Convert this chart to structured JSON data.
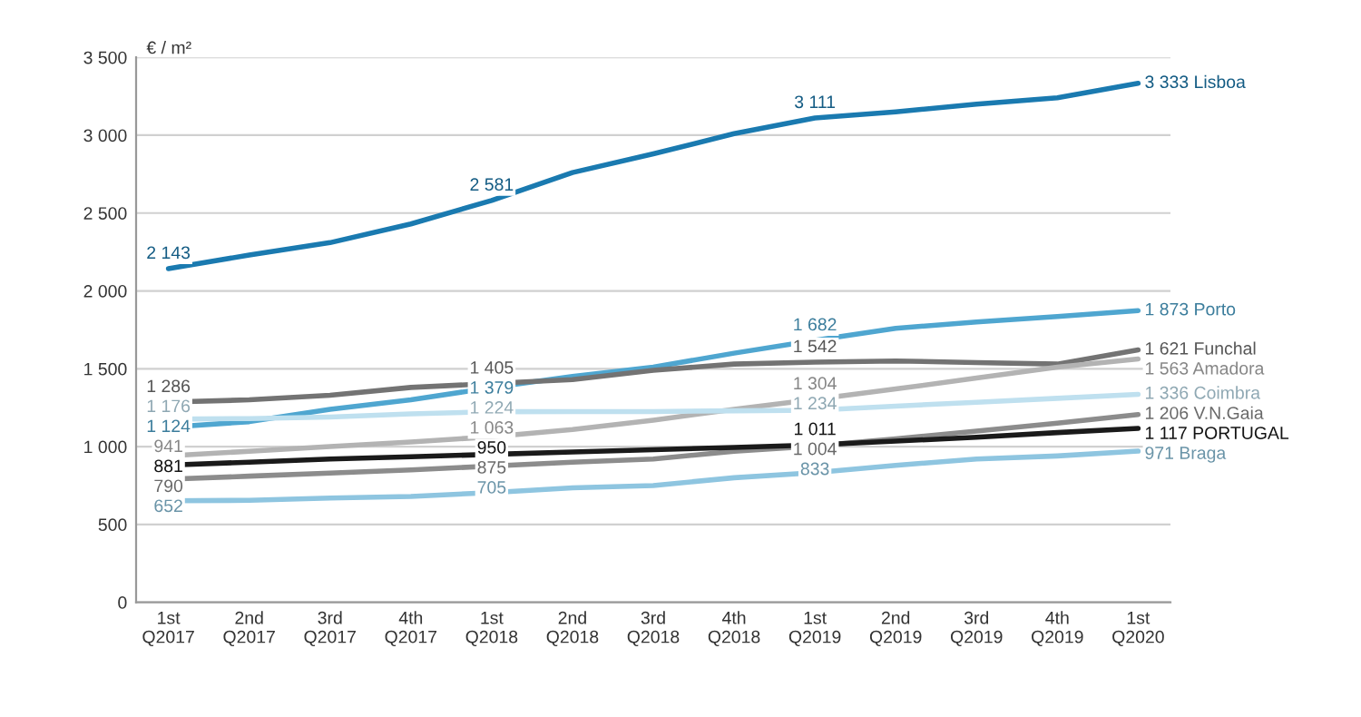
{
  "chart_data": {
    "type": "line",
    "ylabel": "€ / m²",
    "categories": [
      "1st\nQ2017",
      "2nd\nQ2017",
      "3rd\nQ2017",
      "4th\nQ2017",
      "1st\nQ2018",
      "2nd\nQ2018",
      "3rd\nQ2018",
      "4th\nQ2018",
      "1st\nQ2019",
      "2nd\nQ2019",
      "3rd\nQ2019",
      "4th\nQ2019",
      "1st\nQ2020"
    ],
    "ylim": [
      0,
      3500
    ],
    "yticks": [
      0,
      500,
      {
        "value": 1000,
        "label": "1 000"
      },
      {
        "value": 1500,
        "label": "1 500"
      },
      {
        "value": 2000,
        "label": "2 000"
      },
      {
        "value": 2500,
        "label": "2 500"
      },
      {
        "value": 3000,
        "label": "3 000"
      },
      {
        "value": 3500,
        "label": "3 500"
      }
    ],
    "grid": "y",
    "legend": false,
    "marker": "none",
    "line_style": "solid",
    "series": [
      {
        "name": "Lisboa",
        "color": "#1a7ab0",
        "values": [
          2143,
          2230,
          2310,
          2430,
          2581,
          2760,
          2880,
          3010,
          3111,
          3150,
          3200,
          3240,
          3333
        ],
        "value_labels": [
          "2 143",
          null,
          null,
          null,
          "2 581",
          null,
          null,
          null,
          "3 111",
          null,
          null,
          null,
          "3 333"
        ]
      },
      {
        "name": "Porto",
        "color": "#4fa6d0",
        "values": [
          1124,
          1160,
          1240,
          1300,
          1379,
          1450,
          1510,
          1600,
          1682,
          1760,
          1800,
          1835,
          1873
        ],
        "value_labels": [
          "1 124",
          null,
          null,
          null,
          "1 379",
          null,
          null,
          null,
          "1 682",
          null,
          null,
          null,
          "1 873"
        ]
      },
      {
        "name": "Funchal",
        "color": "#737373",
        "values": [
          1286,
          1300,
          1330,
          1380,
          1405,
          1430,
          1490,
          1530,
          1542,
          1550,
          1540,
          1530,
          1621
        ],
        "value_labels": [
          "1 286",
          null,
          null,
          null,
          "1 405",
          null,
          null,
          null,
          "1 542",
          null,
          null,
          null,
          "1 621"
        ]
      },
      {
        "name": "Amadora",
        "color": "#b3b3b3",
        "values": [
          941,
          970,
          1000,
          1030,
          1063,
          1110,
          1170,
          1240,
          1304,
          1370,
          1440,
          1510,
          1563
        ],
        "value_labels": [
          "941",
          null,
          null,
          null,
          "1 063",
          null,
          null,
          null,
          "1 304",
          null,
          null,
          null,
          "1 563"
        ]
      },
      {
        "name": "Coimbra",
        "color": "#bfe0ef",
        "values": [
          1176,
          1180,
          1190,
          1210,
          1224,
          1225,
          1225,
          1230,
          1234,
          1260,
          1285,
          1310,
          1336
        ],
        "value_labels": [
          "1 176",
          null,
          null,
          null,
          "1 224",
          null,
          null,
          null,
          "1 234",
          null,
          null,
          null,
          "1 336"
        ]
      },
      {
        "name": "V.N.Gaia",
        "color": "#8c8c8c",
        "values": [
          790,
          810,
          830,
          850,
          875,
          900,
          920,
          970,
          1004,
          1050,
          1100,
          1150,
          1206
        ],
        "value_labels": [
          "790",
          null,
          null,
          null,
          "875",
          null,
          null,
          null,
          "1 004",
          null,
          null,
          null,
          "1 206"
        ]
      },
      {
        "name": "PORTUGAL",
        "color": "#1a1a1a",
        "values": [
          881,
          900,
          920,
          935,
          950,
          965,
          980,
          995,
          1011,
          1035,
          1060,
          1090,
          1117
        ],
        "value_labels": [
          "881",
          null,
          null,
          null,
          "950",
          null,
          null,
          null,
          "1 011",
          null,
          null,
          null,
          "1 117"
        ]
      },
      {
        "name": "Braga",
        "color": "#8ec5e0",
        "values": [
          652,
          655,
          670,
          680,
          705,
          735,
          750,
          800,
          833,
          880,
          920,
          940,
          971
        ],
        "value_labels": [
          "652",
          null,
          null,
          null,
          "705",
          null,
          null,
          null,
          "833",
          null,
          null,
          null,
          "971"
        ]
      }
    ]
  }
}
